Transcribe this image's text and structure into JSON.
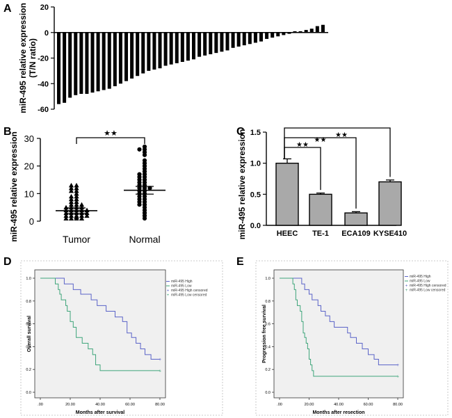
{
  "chart_data": [
    {
      "panel": "A",
      "type": "bar",
      "ylabel": "miR-495 relative expression (T/N ratio)",
      "ylabel_lines": [
        "miR-495 relative expression",
        "(T/N ratio)"
      ],
      "ylim": [
        -60,
        20
      ],
      "yticks": [
        20,
        0,
        -20,
        -40,
        -60
      ],
      "values": [
        -56,
        -55,
        -51,
        -49,
        -48,
        -48,
        -47,
        -46,
        -45,
        -44,
        -42,
        -40,
        -38,
        -36,
        -34,
        -32,
        -30,
        -29,
        -28,
        -26,
        -25,
        -24,
        -23,
        -22,
        -21,
        -19,
        -18,
        -17,
        -16,
        -15,
        -14,
        -12,
        -11,
        -10,
        -9,
        -8,
        -7,
        -5,
        -4,
        -3,
        -2,
        -1,
        1,
        1,
        2,
        3,
        5,
        6
      ]
    },
    {
      "panel": "B",
      "type": "scatter",
      "ylabel": "miR-495 relative expression",
      "ylim": [
        0,
        30
      ],
      "yticks": [
        0,
        10,
        20,
        30
      ],
      "categories": [
        "Tumor",
        "Normal"
      ],
      "significance": "★★",
      "series": [
        {
          "name": "Tumor",
          "marker": "triangle",
          "mean": 3.8,
          "sem_low": 2.8,
          "sem_high": 4.8,
          "values": [
            13,
            13,
            12,
            12,
            11,
            11,
            10,
            9,
            9,
            8,
            8,
            7,
            7,
            6,
            6,
            6,
            5,
            5,
            5,
            5,
            4,
            4,
            4,
            4,
            4,
            3,
            3,
            3,
            3,
            3,
            2,
            2,
            2,
            2,
            2,
            1.5,
            1,
            1,
            1,
            1
          ]
        },
        {
          "name": "Normal",
          "marker": "circle",
          "mean": 11.2,
          "sem_low": 9.8,
          "sem_high": 12.6,
          "values": [
            27,
            26,
            26,
            25,
            24,
            22,
            21,
            20,
            19,
            18,
            17,
            17,
            16,
            16,
            15,
            15,
            14,
            14,
            13,
            13,
            12,
            12,
            12,
            11,
            11,
            10,
            10,
            9,
            9,
            8,
            8,
            7,
            7,
            6,
            6,
            5,
            4,
            3,
            2,
            1
          ]
        }
      ]
    },
    {
      "panel": "C",
      "type": "bar",
      "ylabel": "miR-495  relative expression",
      "ylim": [
        0,
        1.5
      ],
      "yticks": [
        "0.0",
        "0.5",
        "1.0",
        "1.5"
      ],
      "categories": [
        "HEEC",
        "TE-1",
        "ECA109",
        "KYSE410"
      ],
      "values": [
        1.0,
        0.5,
        0.2,
        0.7
      ],
      "errors": [
        0.07,
        0.02,
        0.02,
        0.03
      ],
      "significance": [
        "★★",
        "★★",
        "★★"
      ]
    },
    {
      "panel": "D",
      "type": "line",
      "ylabel": "Overall survival",
      "xlabel": "Months after survival",
      "xlim": [
        0,
        80
      ],
      "ylim": [
        0,
        1
      ],
      "xticks": [
        ".00",
        "20.00",
        "40.00",
        "60.00",
        "80.00"
      ],
      "yticks": [
        "0.0",
        "0.2",
        "0.4",
        "0.6",
        "0.8",
        "1.0"
      ],
      "legend": [
        "miR-495 High",
        "miR-495 Low",
        "miR-495 High censored",
        "miR-495 Low censored"
      ],
      "series": [
        {
          "name": "miR-495 High",
          "color": "#5a63c8",
          "steps": [
            [
              0,
              1.0
            ],
            [
              16,
              0.95
            ],
            [
              22,
              0.9
            ],
            [
              27,
              0.86
            ],
            [
              34,
              0.81
            ],
            [
              38,
              0.76
            ],
            [
              44,
              0.71
            ],
            [
              50,
              0.66
            ],
            [
              55,
              0.62
            ],
            [
              58,
              0.52
            ],
            [
              61,
              0.48
            ],
            [
              64,
              0.43
            ],
            [
              67,
              0.38
            ],
            [
              70,
              0.33
            ],
            [
              74,
              0.29
            ],
            [
              80,
              0.29
            ]
          ]
        },
        {
          "name": "miR-495 Low",
          "color": "#3ea57a",
          "steps": [
            [
              0,
              1.0
            ],
            [
              10,
              0.95
            ],
            [
              12,
              0.9
            ],
            [
              13,
              0.86
            ],
            [
              14,
              0.81
            ],
            [
              17,
              0.76
            ],
            [
              18,
              0.71
            ],
            [
              20,
              0.62
            ],
            [
              22,
              0.57
            ],
            [
              24,
              0.48
            ],
            [
              28,
              0.43
            ],
            [
              32,
              0.38
            ],
            [
              35,
              0.33
            ],
            [
              37,
              0.24
            ],
            [
              40,
              0.19
            ],
            [
              80,
              0.19
            ]
          ]
        }
      ]
    },
    {
      "panel": "E",
      "type": "line",
      "ylabel": "Progression free survival",
      "xlabel": "Months after resection",
      "xlim": [
        0,
        80
      ],
      "ylim": [
        0,
        1
      ],
      "xticks": [
        ".00",
        "20.00",
        "40.00",
        "60.00",
        "80.00"
      ],
      "yticks": [
        "0.0",
        "0.2",
        "0.4",
        "0.6",
        "0.8",
        "1.0"
      ],
      "legend": [
        "miR-495 High",
        "miR-495 Low",
        "miR-495 High censored",
        "miR-495 Low censored"
      ],
      "series": [
        {
          "name": "miR-495 High",
          "color": "#5a63c8",
          "steps": [
            [
              0,
              1.0
            ],
            [
              15,
              0.95
            ],
            [
              17,
              0.9
            ],
            [
              20,
              0.86
            ],
            [
              22,
              0.81
            ],
            [
              26,
              0.76
            ],
            [
              28,
              0.71
            ],
            [
              31,
              0.67
            ],
            [
              34,
              0.62
            ],
            [
              37,
              0.57
            ],
            [
              46,
              0.52
            ],
            [
              48,
              0.48
            ],
            [
              52,
              0.43
            ],
            [
              56,
              0.38
            ],
            [
              60,
              0.33
            ],
            [
              64,
              0.29
            ],
            [
              67,
              0.24
            ],
            [
              80,
              0.24
            ]
          ]
        },
        {
          "name": "miR-495 Low",
          "color": "#3ea57a",
          "steps": [
            [
              0,
              1.0
            ],
            [
              9,
              0.95
            ],
            [
              10,
              0.9
            ],
            [
              11,
              0.81
            ],
            [
              12,
              0.76
            ],
            [
              14,
              0.71
            ],
            [
              15,
              0.62
            ],
            [
              16,
              0.52
            ],
            [
              17,
              0.48
            ],
            [
              18,
              0.43
            ],
            [
              19,
              0.38
            ],
            [
              20,
              0.29
            ],
            [
              21,
              0.24
            ],
            [
              22,
              0.19
            ],
            [
              23,
              0.14
            ],
            [
              80,
              0.14
            ]
          ]
        }
      ]
    }
  ]
}
